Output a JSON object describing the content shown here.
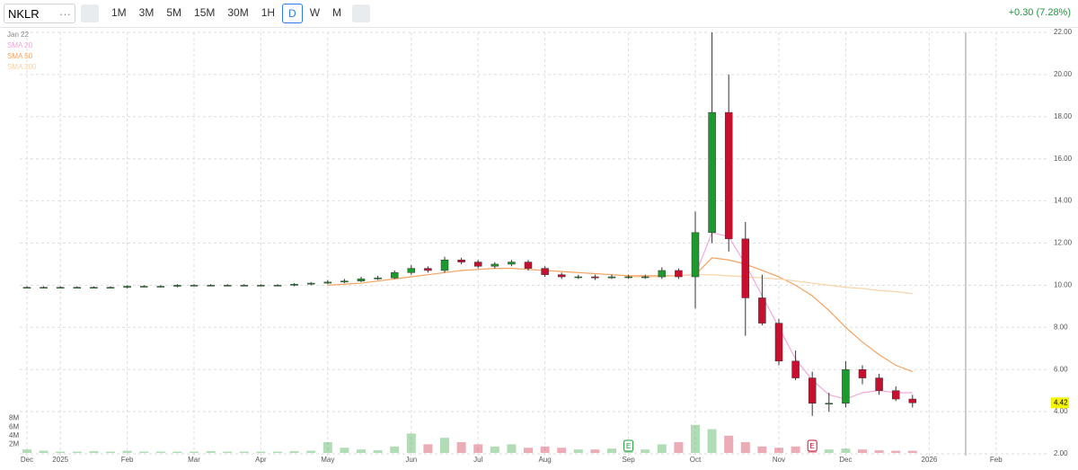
{
  "toolbar": {
    "symbol": "NKLR",
    "intervals": [
      "1M",
      "3M",
      "5M",
      "15M",
      "30M",
      "1H",
      "D",
      "W",
      "M"
    ],
    "change": "+0.30 (7.28%)"
  },
  "chart_data": {
    "type": "candlestick",
    "legend": [
      "Jan 22",
      "SMA 20",
      "SMA 50",
      "SMA 200"
    ],
    "categories": [
      "Dec",
      null,
      "2025",
      null,
      null,
      null,
      "Feb",
      null,
      null,
      null,
      "Mar",
      null,
      null,
      null,
      "Apr",
      null,
      null,
      null,
      "May",
      null,
      null,
      null,
      null,
      "Jun",
      null,
      null,
      null,
      "Jul",
      null,
      null,
      null,
      "Aug",
      null,
      null,
      null,
      null,
      "Sep",
      null,
      null,
      null,
      "Oct",
      null,
      null,
      null,
      null,
      "Nov",
      null,
      null,
      null,
      "Dec",
      null,
      null,
      null,
      null,
      "2026",
      null,
      null,
      null,
      "Feb",
      null,
      null,
      null
    ],
    "open": [
      9.9,
      9.9,
      9.9,
      9.9,
      9.9,
      9.9,
      9.9,
      9.95,
      9.95,
      9.95,
      10.0,
      10.0,
      10.0,
      10.0,
      10.0,
      10.0,
      10.0,
      10.05,
      10.1,
      10.15,
      10.2,
      10.3,
      10.35,
      10.6,
      10.8,
      10.7,
      11.2,
      11.1,
      10.9,
      11.0,
      11.1,
      10.8,
      10.5,
      10.4,
      10.4,
      10.35,
      10.4,
      10.4,
      10.4,
      10.7,
      10.4,
      12.5,
      18.2,
      12.2,
      9.4,
      8.2,
      6.4,
      5.6,
      4.4,
      4.4,
      6.0,
      5.6,
      5.0,
      4.6,
      null,
      null,
      null,
      null,
      null,
      null,
      null,
      null
    ],
    "high": [
      9.95,
      9.95,
      9.95,
      9.95,
      9.95,
      9.95,
      10.0,
      10.0,
      10.0,
      10.05,
      10.05,
      10.05,
      10.05,
      10.05,
      10.05,
      10.05,
      10.1,
      10.15,
      10.25,
      10.3,
      10.4,
      10.45,
      10.7,
      10.95,
      10.9,
      11.35,
      11.3,
      11.2,
      11.1,
      11.2,
      11.2,
      10.9,
      10.6,
      10.5,
      10.5,
      10.5,
      10.5,
      10.5,
      10.85,
      10.8,
      13.5,
      22.0,
      20.0,
      13.0,
      10.5,
      8.4,
      6.9,
      5.9,
      4.9,
      6.4,
      6.2,
      5.8,
      5.2,
      4.8,
      null,
      null,
      null,
      null,
      null,
      null,
      null,
      null
    ],
    "low": [
      9.85,
      9.85,
      9.85,
      9.85,
      9.85,
      9.85,
      9.85,
      9.9,
      9.9,
      9.9,
      9.95,
      9.95,
      9.95,
      9.95,
      9.95,
      9.95,
      9.95,
      10.0,
      10.05,
      10.1,
      10.15,
      10.25,
      10.3,
      10.5,
      10.6,
      10.6,
      11.0,
      10.8,
      10.8,
      10.9,
      10.7,
      10.4,
      10.3,
      10.3,
      10.25,
      10.3,
      10.3,
      10.3,
      10.3,
      10.3,
      8.9,
      12.0,
      11.6,
      7.6,
      8.1,
      6.2,
      5.5,
      3.8,
      4.0,
      4.2,
      5.3,
      4.8,
      4.5,
      4.2,
      null,
      null,
      null,
      null,
      null,
      null,
      null,
      null
    ],
    "close": [
      9.9,
      9.9,
      9.9,
      9.9,
      9.9,
      9.9,
      9.95,
      9.95,
      9.95,
      10.0,
      10.0,
      10.0,
      10.0,
      10.0,
      10.0,
      10.0,
      10.05,
      10.1,
      10.15,
      10.2,
      10.3,
      10.35,
      10.6,
      10.8,
      10.7,
      11.2,
      11.1,
      10.9,
      11.0,
      11.1,
      10.8,
      10.5,
      10.4,
      10.4,
      10.35,
      10.4,
      10.4,
      10.4,
      10.7,
      10.4,
      12.5,
      18.2,
      12.2,
      9.4,
      8.2,
      6.4,
      5.6,
      4.4,
      4.4,
      6.0,
      5.6,
      5.0,
      4.6,
      4.42,
      null,
      null,
      null,
      null,
      null,
      null,
      null,
      null
    ],
    "volume": [
      0.8,
      0.5,
      0.3,
      0.3,
      0.4,
      0.3,
      0.5,
      0.3,
      0.3,
      0.3,
      0.3,
      0.4,
      0.3,
      0.3,
      0.3,
      0.3,
      0.4,
      0.5,
      2.5,
      1.2,
      0.8,
      0.6,
      1.5,
      4.5,
      2.0,
      3.5,
      2.5,
      2.0,
      1.5,
      2.0,
      1.2,
      1.5,
      1.2,
      0.8,
      0.8,
      1.0,
      1.0,
      0.8,
      2.0,
      2.5,
      6.5,
      5.5,
      4.0,
      2.5,
      1.5,
      1.2,
      1.5,
      1.0,
      0.8,
      1.0,
      0.8,
      0.6,
      0.5,
      0.5,
      null,
      null,
      null,
      null,
      null,
      null,
      null,
      null
    ],
    "lines": [
      {
        "name": "SMA 20",
        "color": "#f2a7dc",
        "values": [
          null,
          null,
          null,
          null,
          null,
          null,
          null,
          null,
          null,
          null,
          null,
          null,
          null,
          null,
          null,
          null,
          null,
          null,
          null,
          null,
          null,
          null,
          null,
          null,
          null,
          null,
          null,
          null,
          null,
          null,
          null,
          null,
          null,
          null,
          null,
          null,
          null,
          null,
          null,
          null,
          10.5,
          12.5,
          12.3,
          11.0,
          9.5,
          8.0,
          6.5,
          5.5,
          4.8,
          4.6,
          4.9,
          5.0,
          4.9,
          4.9,
          null,
          null,
          null,
          null,
          null,
          null,
          null,
          null
        ]
      },
      {
        "name": "SMA 50",
        "color": "#f5a25d",
        "values": [
          null,
          null,
          null,
          null,
          null,
          null,
          null,
          null,
          null,
          null,
          null,
          null,
          null,
          null,
          null,
          null,
          null,
          null,
          10.0,
          10.05,
          10.1,
          10.2,
          10.3,
          10.4,
          10.5,
          10.6,
          10.7,
          10.75,
          10.8,
          10.8,
          10.75,
          10.7,
          10.65,
          10.6,
          10.55,
          10.5,
          10.45,
          10.45,
          10.45,
          10.45,
          10.5,
          11.3,
          11.2,
          11.0,
          10.7,
          10.4,
          10.0,
          9.5,
          8.8,
          8.0,
          7.3,
          6.7,
          6.2,
          5.9,
          null,
          null,
          null,
          null,
          null,
          null,
          null,
          null
        ]
      },
      {
        "name": "SMA 200",
        "color": "#f9d2a6",
        "values": [
          null,
          null,
          null,
          null,
          null,
          null,
          null,
          null,
          null,
          null,
          null,
          null,
          null,
          null,
          null,
          null,
          null,
          null,
          null,
          null,
          null,
          null,
          null,
          null,
          null,
          null,
          null,
          null,
          null,
          null,
          null,
          null,
          null,
          null,
          null,
          null,
          10.4,
          10.4,
          10.4,
          10.45,
          10.5,
          10.5,
          10.45,
          10.4,
          10.35,
          10.3,
          10.2,
          10.1,
          10.0,
          9.9,
          9.85,
          9.75,
          9.7,
          9.6,
          null,
          null,
          null,
          null,
          null,
          null,
          null,
          null
        ]
      }
    ],
    "up_color": "#1d9a2e",
    "down_color": "#c8102e",
    "ylim": [
      2,
      22
    ],
    "yticks": [
      {
        "value": 2,
        "label": "2.00"
      },
      {
        "value": 4,
        "label": "4.00"
      },
      {
        "value": 6,
        "label": "6.00"
      },
      {
        "value": 8,
        "label": "8.00"
      },
      {
        "value": 10,
        "label": "10.00"
      },
      {
        "value": 12,
        "label": "12.00"
      },
      {
        "value": 14,
        "label": "14.00"
      },
      {
        "value": 16,
        "label": "16.00"
      },
      {
        "value": 18,
        "label": "18.00"
      },
      {
        "value": 20,
        "label": "20.00"
      },
      {
        "value": 22,
        "label": "22.00"
      }
    ],
    "vlim": [
      0,
      10
    ],
    "vticks": [
      {
        "value": 2,
        "label": "2M"
      },
      {
        "value": 4,
        "label": "4M"
      },
      {
        "value": 6,
        "label": "6M"
      },
      {
        "value": 8,
        "label": "8M"
      }
    ],
    "last_value": 4.42,
    "earnings": [
      {
        "text": "E",
        "index": 36,
        "color": "#1d9a2e"
      },
      {
        "text": "E",
        "index": 47,
        "color": "#c8102e"
      }
    ],
    "grid": true
  }
}
